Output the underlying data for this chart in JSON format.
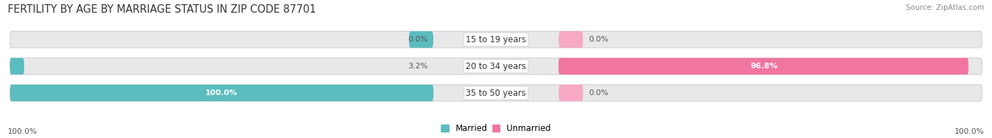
{
  "title": "FERTILITY BY AGE BY MARRIAGE STATUS IN ZIP CODE 87701",
  "source": "Source: ZipAtlas.com",
  "categories": [
    "15 to 19 years",
    "20 to 34 years",
    "35 to 50 years"
  ],
  "married_values": [
    0.0,
    3.2,
    100.0
  ],
  "unmarried_values": [
    0.0,
    96.8,
    0.0
  ],
  "married_color": "#5bbcbf",
  "unmarried_color": "#f075a0",
  "unmarried_light_color": "#f7a8c4",
  "bar_bg_color": "#e8e8e8",
  "bar_bg_border_color": "#d0d0d0",
  "title_fontsize": 10.5,
  "source_fontsize": 7.5,
  "label_fontsize": 8,
  "cat_fontsize": 8.5,
  "legend_fontsize": 8.5,
  "axis_label_left": "100.0%",
  "axis_label_right": "100.0%",
  "bg_color": "#ffffff"
}
